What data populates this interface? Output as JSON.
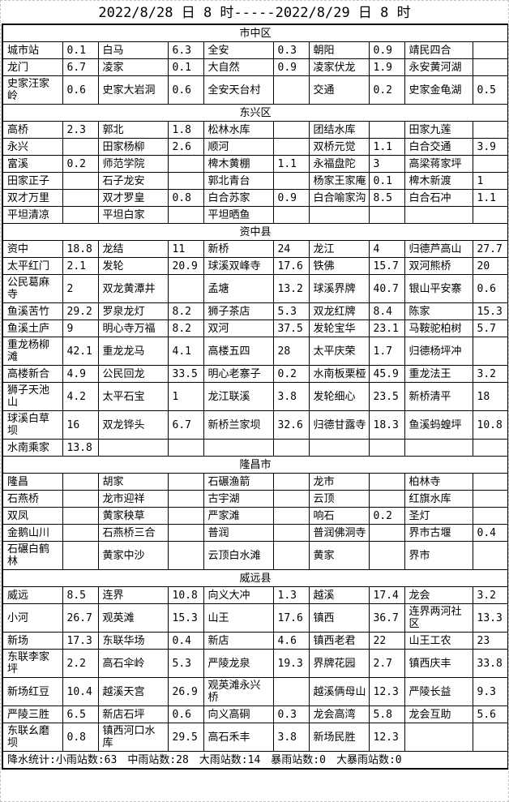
{
  "page": {
    "title": "2022/8/28 日 8 时-----2022/8/29 日 8 时",
    "footer_segments": [
      "降水统计:小雨站数:63",
      "中雨站数:28",
      "大雨站数:14",
      "暴雨站数:0",
      "大暴雨站数:0"
    ]
  },
  "table": {
    "sections": [
      {
        "name": "市中区",
        "rows": [
          [
            "城市站",
            "0.1",
            "白马",
            "6.3",
            "全安",
            "0.3",
            "朝阳",
            "0.9",
            "靖民四合",
            ""
          ],
          [
            "龙门",
            "6.7",
            "凌家",
            "0.1",
            "大自然",
            "0.9",
            "凌家伏龙",
            "1.9",
            "永安黄河湖",
            ""
          ],
          [
            "史家汪家岭",
            "0.6",
            "史家大岩洞",
            "0.6",
            "全安天台村",
            "",
            "交通",
            "0.2",
            "史家金龟湖",
            "0.5"
          ]
        ]
      },
      {
        "name": "东兴区",
        "rows": [
          [
            "高桥",
            "2.3",
            "郭北",
            "1.8",
            "松林水库",
            "",
            "团结水库",
            "",
            "田家九莲",
            ""
          ],
          [
            "永兴",
            "",
            "田家杨柳",
            "2.6",
            "顺河",
            "",
            "双桥元觉",
            "1.1",
            "白合交通",
            "3.9"
          ],
          [
            "富溪",
            "0.2",
            "师范学院",
            "",
            "椑木黄棚",
            "1.1",
            "永福盘陀",
            "3",
            "高梁蒋家坪",
            ""
          ],
          [
            "田家正子",
            "",
            "石子龙安",
            "",
            "郭北青台",
            "",
            "杨家王家庵",
            "0.1",
            "椑木新渡",
            "1"
          ],
          [
            "双才万里",
            "",
            "双才罗皇",
            "0.8",
            "白合苏家",
            "0.9",
            "白合喻家沟",
            "8.5",
            "白合石冲",
            "1.1"
          ],
          [
            "平坦清凉",
            "",
            "平坦白家",
            "",
            "平坦晒鱼",
            "",
            "",
            "",
            "",
            ""
          ]
        ]
      },
      {
        "name": "资中县",
        "rows": [
          [
            "资中",
            "18.8",
            "龙结",
            "11",
            "新桥",
            "24",
            "龙江",
            "4",
            "归德芦高山",
            "27.7"
          ],
          [
            "太平红门",
            "2.1",
            "发轮",
            "20.9",
            "球溪双峰寺",
            "17.6",
            "铁佛",
            "15.7",
            "双河熊桥",
            "20"
          ],
          [
            "公民葛麻寺",
            "2",
            "双龙黄潭井",
            "",
            "孟塘",
            "13.2",
            "球溪界牌",
            "40.7",
            "银山平安寨",
            "0.6"
          ],
          [
            "鱼溪苦竹",
            "29.2",
            "罗泉龙灯",
            "8.2",
            "狮子茶店",
            "5.3",
            "双龙红牌",
            "8.4",
            "陈家",
            "15.3"
          ],
          [
            "鱼溪土庐",
            "9",
            "明心寺万福",
            "8.2",
            "双河",
            "37.5",
            "发轮宝华",
            "23.1",
            "马鞍驼柏树",
            "5.7"
          ],
          [
            "重龙杨柳滩",
            "42.1",
            "重龙龙马",
            "4.1",
            "高楼五四",
            "28",
            "太平庆荣",
            "1.7",
            "归德杨坪冲",
            ""
          ],
          [
            "高楼新合",
            "4.9",
            "公民回龙",
            "33.5",
            "明心老寨子",
            "0.2",
            "水南板栗桠",
            "45.9",
            "重龙法王",
            "3.2"
          ],
          [
            "狮子天池山",
            "4.2",
            "太平石宝",
            "1",
            "龙江联溪",
            "3.8",
            "发轮细心",
            "23.5",
            "新桥清平",
            "18"
          ],
          [
            "球溪白草坝",
            "16",
            "双龙铧头",
            "6.7",
            "新桥兰家坝",
            "32.6",
            "归德甘露寺",
            "18.3",
            "鱼溪蚂蝗坪",
            "10.8"
          ],
          [
            "水南乘家",
            "13.8",
            "",
            "",
            "",
            "",
            "",
            "",
            "",
            ""
          ]
        ]
      },
      {
        "name": "隆昌市",
        "rows": [
          [
            "隆昌",
            "",
            "胡家",
            "",
            "石碾渔箭",
            "",
            "龙市",
            "",
            "柏林寺",
            ""
          ],
          [
            "石燕桥",
            "",
            "龙市迎祥",
            "",
            "古宇湖",
            "",
            "云顶",
            "",
            "红旗水库",
            ""
          ],
          [
            "双凤",
            "",
            "黄家秧草",
            "",
            "严家滩",
            "",
            "响石",
            "0.2",
            "圣灯",
            ""
          ],
          [
            "金鹅山川",
            "",
            "石燕桥三合",
            "",
            "普润",
            "",
            "普润佛洞寺",
            "",
            "界市古堰",
            "0.4"
          ],
          [
            "石碾白鹤林",
            "",
            "黄家中沙",
            "",
            "云顶白水滩",
            "",
            "黄家",
            "",
            "界市",
            ""
          ]
        ]
      },
      {
        "name": "威远县",
        "rows": [
          [
            "威远",
            "8.5",
            "连界",
            "10.8",
            "向义大冲",
            "1.3",
            "越溪",
            "17.4",
            "龙会",
            "3.2"
          ],
          [
            "小河",
            "26.7",
            "观英滩",
            "15.3",
            "山王",
            "17.6",
            "镇西",
            "36.7",
            "连界两河社区",
            "13.3"
          ],
          [
            "新场",
            "17.3",
            "东联华场",
            "0.4",
            "新店",
            "4.6",
            "镇西老君",
            "22",
            "山王工农",
            "23"
          ],
          [
            "东联李家坪",
            "2.2",
            "高石伞岭",
            "5.3",
            "严陵龙泉",
            "19.3",
            "界牌花园",
            "2.7",
            "镇西庆丰",
            "33.8"
          ],
          [
            "新场红豆",
            "10.4",
            "越溪天宫",
            "26.9",
            "观英滩永兴桥",
            "",
            "越溪俩母山",
            "12.3",
            "严陵长益",
            "9.3"
          ],
          [
            "严陵三胜",
            "6.5",
            "新店石坪",
            "0.6",
            "向义高硐",
            "0.3",
            "龙会高湾",
            "5.8",
            "龙会互助",
            "5.6"
          ],
          [
            "东联幺磨坝",
            "0.8",
            "镇西河口水库",
            "29.5",
            "高石禾丰",
            "3.8",
            "新场民胜",
            "12.3",
            "",
            ""
          ]
        ]
      }
    ]
  }
}
